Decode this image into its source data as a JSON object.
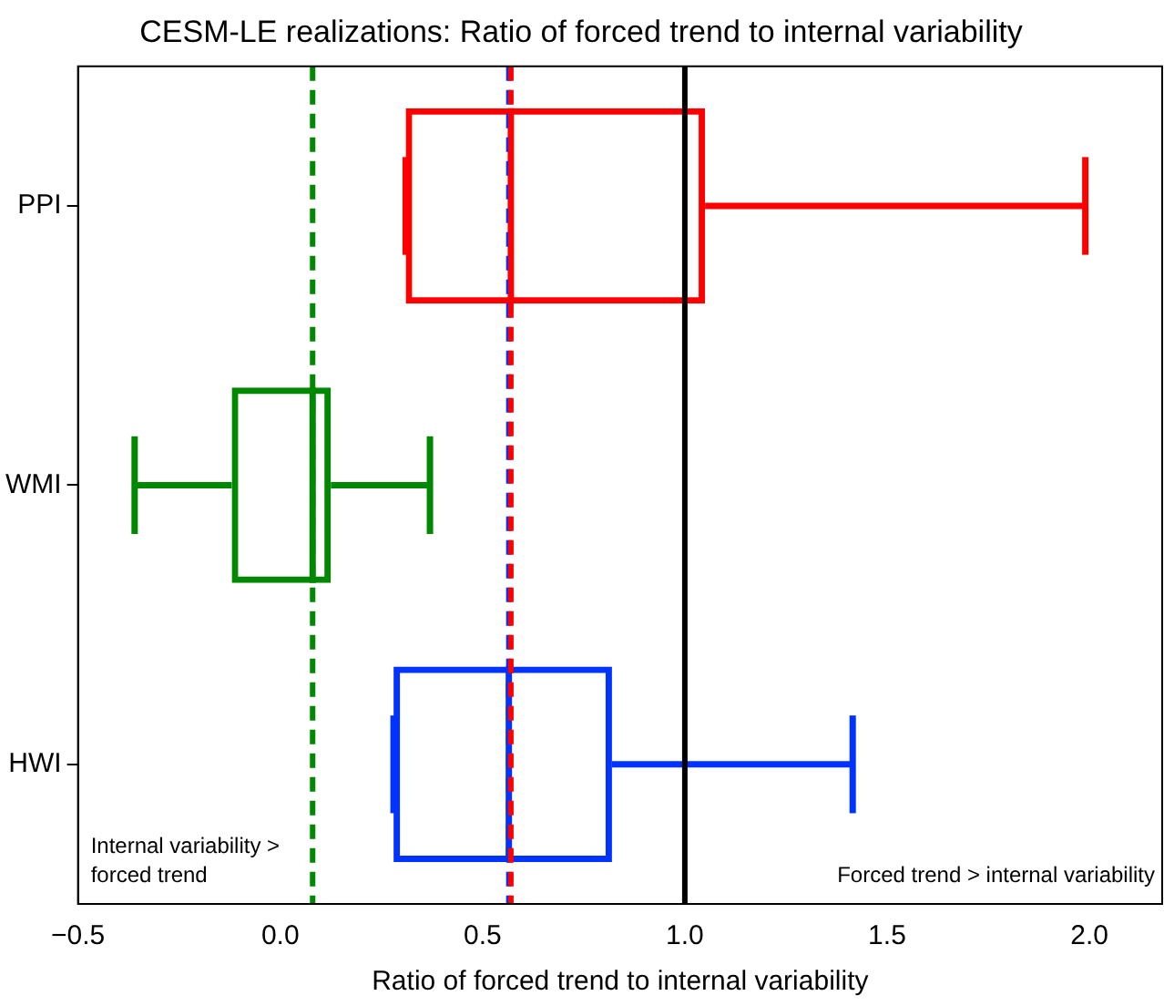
{
  "chart_data": {
    "type": "box",
    "orientation": "horizontal",
    "title": "CESM-LE realizations: Ratio of forced trend to internal variability",
    "xlabel": "Ratio of forced trend to internal variability",
    "categories": [
      "PPI",
      "WMI",
      "HWI"
    ],
    "colors": [
      "#ff0000",
      "#008800",
      "#0033ff"
    ],
    "boxes": [
      {
        "low": 0.31,
        "q1": 0.31,
        "median": 0.57,
        "q3": 1.05,
        "high": 1.99
      },
      {
        "low": -0.36,
        "q1": -0.12,
        "median": 0.08,
        "q3": 0.125,
        "high": 0.37
      },
      {
        "low": 0.28,
        "q1": 0.28,
        "median": 0.565,
        "q3": 0.82,
        "high": 1.415
      }
    ],
    "xlim": [
      -0.5,
      2.18
    ],
    "xticks": [
      {
        "value": -0.5,
        "label": "−0.5"
      },
      {
        "value": 0,
        "label": "0.0"
      },
      {
        "value": 0.5,
        "label": "0.5"
      },
      {
        "value": 1,
        "label": "1.0"
      },
      {
        "value": 1.5,
        "label": "1.5"
      },
      {
        "value": 2,
        "label": "2.0"
      }
    ],
    "ref_lines": [
      {
        "axis": "x",
        "value": 0.08,
        "color": "#008800",
        "line_style": "dashed"
      },
      {
        "axis": "x",
        "value": 0.565,
        "color": "#0033ff",
        "line_style": "dashed"
      },
      {
        "axis": "x",
        "value": 0.57,
        "color": "#ff0000",
        "line_style": "dashed"
      },
      {
        "axis": "x",
        "value": 1.0,
        "color": "#000000",
        "line_style": "solid"
      }
    ],
    "annotations": [
      "Internal variability >\nforced trend",
      "Forced trend > internal variability"
    ],
    "grid": false,
    "legend": false
  }
}
